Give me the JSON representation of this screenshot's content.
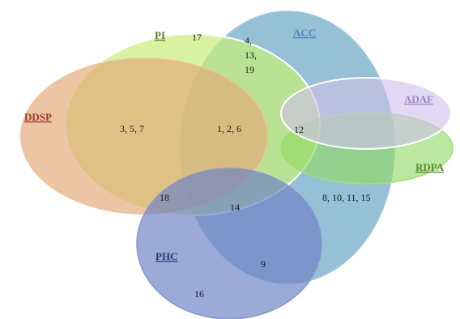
{
  "sets": [
    {
      "key": "acc",
      "label": "ACC",
      "fill": "#7fb2cd",
      "stroke": "#9cc6dc",
      "label_color": "#5b7fc0"
    },
    {
      "key": "pi",
      "label": "PI",
      "fill": "#c7ee7a",
      "stroke": "#ffffff",
      "label_color": "#5a7a1e"
    },
    {
      "key": "ddsp",
      "label": "DDSP",
      "fill": "#e3a978",
      "stroke": "#eebf98",
      "label_color": "#9a3b2f"
    },
    {
      "key": "adaf",
      "label": "ADAF",
      "fill": "#cfc1e8",
      "stroke": "#ffffff",
      "label_color": "#9a86c4"
    },
    {
      "key": "rdpa",
      "label": "RDPA",
      "fill": "#8fda62",
      "stroke": "#9fdf7c",
      "label_color": "#5a8d2a"
    },
    {
      "key": "phc",
      "label": "PHC",
      "fill": "#6d82c6",
      "stroke": "#8697d0",
      "label_color": "#2a3a78"
    }
  ],
  "regions": {
    "pi_only": "17",
    "pi_acc": [
      "4,",
      "13,",
      "19"
    ],
    "ddsp_pi": "3, 5, 7",
    "ddsp_pi_acc": "1, 2, 6",
    "adaf_rdpa_acc_pi": "12",
    "acc_only": "8, 10, 11, 15",
    "ddsp_pi_phc": "18",
    "acc_phc_pi": "14",
    "acc_phc": "9",
    "phc_only": "16"
  }
}
